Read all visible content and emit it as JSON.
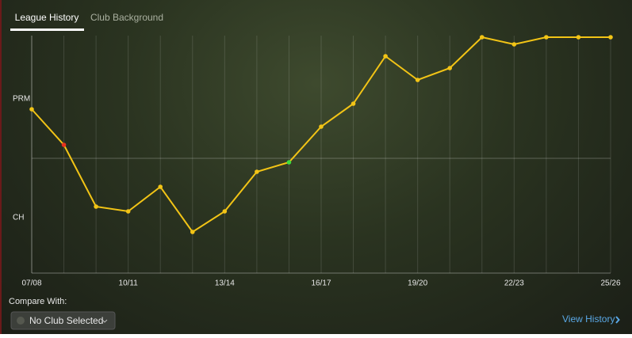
{
  "tabs": [
    "League History",
    "Club Background"
  ],
  "chart_data": {
    "type": "line",
    "categories": [
      "07/08",
      null,
      null,
      "10/11",
      null,
      null,
      "13/14",
      null,
      null,
      "16/17",
      null,
      null,
      "19/20",
      null,
      null,
      "22/23",
      null,
      null,
      "25/26"
    ],
    "series": [
      {
        "color": "#f2c416",
        "values": [
          207,
          162,
          84,
          78,
          109,
          52,
          78,
          128,
          140,
          185,
          214,
          274,
          244,
          259,
          298,
          289,
          298,
          298,
          298
        ],
        "point_colors": [
          "#f2c416",
          "#e8321e",
          "#f2c416",
          "#f2c416",
          "#f2c416",
          "#f2c416",
          "#f2c416",
          "#f2c416",
          "#3ddc3d",
          "#f2c416",
          "#f2c416",
          "#f2c416",
          "#f2c416",
          "#f2c416",
          "#f2c416",
          "#f2c416",
          "#f2c416",
          "#f2c416",
          "#f2c416"
        ]
      }
    ],
    "ylim": [
      0,
      300
    ],
    "yticks": [
      {
        "value": 220,
        "label": "PRM"
      },
      {
        "value": 70,
        "label": "CH"
      }
    ],
    "grid": true
  },
  "compare": {
    "label": "Compare With:",
    "dropdown": "No Club Selected"
  },
  "link": "View History"
}
